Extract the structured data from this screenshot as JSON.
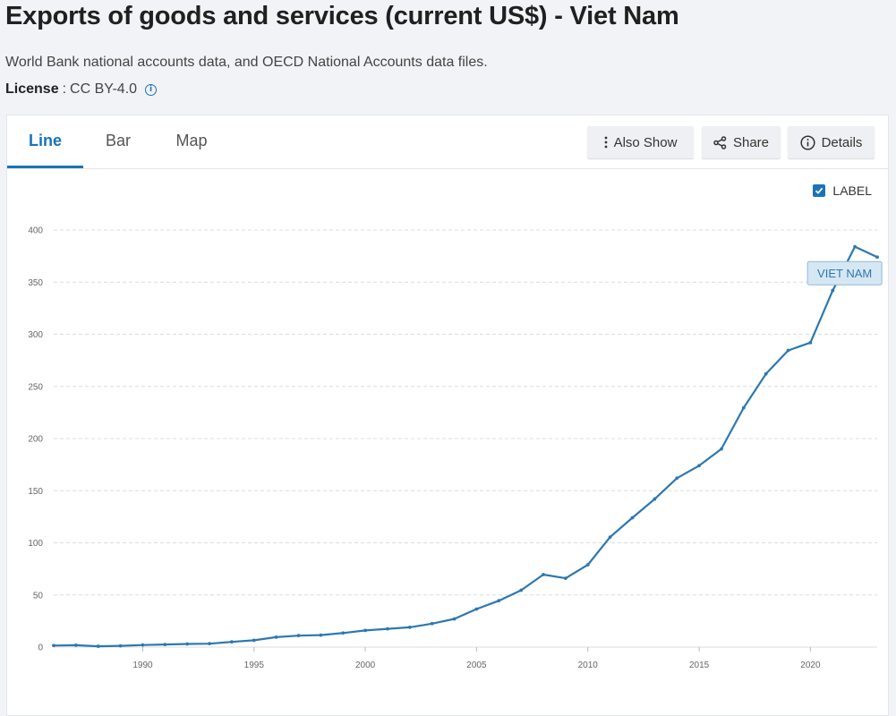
{
  "page": {
    "title": "Exports of goods and services (current US$) - Viet Nam",
    "source": "World Bank national accounts data, and OECD National Accounts data files.",
    "license_label": "License",
    "license_sep": ":",
    "license_value": "CC BY-4.0",
    "info_glyph": "i"
  },
  "tabs": [
    {
      "label": "Line",
      "active": true
    },
    {
      "label": "Bar",
      "active": false
    },
    {
      "label": "Map",
      "active": false
    }
  ],
  "toolbar": {
    "also_show": "Also Show",
    "share": "Share",
    "details": "Details"
  },
  "label_toggle": {
    "label": "LABEL",
    "checked": true
  },
  "colors": {
    "accent": "#1a73b8",
    "series": "#2e78b0",
    "grid": "#dcdcdc",
    "label_bg": "#d6e7f4"
  },
  "chart_data": {
    "type": "line",
    "title": "Exports of goods and services (current US$) - Viet Nam",
    "xlabel": "",
    "ylabel": "",
    "ylim": [
      0,
      400
    ],
    "xlim": [
      1986,
      2023
    ],
    "yticks": [
      0,
      50,
      100,
      150,
      200,
      250,
      300,
      350,
      400
    ],
    "xticks": [
      1990,
      1995,
      2000,
      2005,
      2010,
      2015,
      2020
    ],
    "grid": true,
    "series": [
      {
        "name": "VIET NAM",
        "x": [
          1986,
          1987,
          1988,
          1989,
          1990,
          1991,
          1992,
          1993,
          1994,
          1995,
          1996,
          1997,
          1998,
          1999,
          2000,
          2001,
          2002,
          2003,
          2004,
          2005,
          2006,
          2007,
          2008,
          2009,
          2010,
          2011,
          2012,
          2013,
          2014,
          2015,
          2016,
          2017,
          2018,
          2019,
          2020,
          2021,
          2022,
          2023
        ],
        "values": [
          1.5,
          1.8,
          0.8,
          1.2,
          2.0,
          2.5,
          3.0,
          3.3,
          5.0,
          6.5,
          9.5,
          11.0,
          11.5,
          13.5,
          16.0,
          17.5,
          19.0,
          22.5,
          27.0,
          36.5,
          44.5,
          54.5,
          69.5,
          66.0,
          79.0,
          105.5,
          124.0,
          142.0,
          162.0,
          174.0,
          190.0,
          229.5,
          262.0,
          284.5,
          292.0,
          342.0,
          384.0,
          374.0
        ]
      }
    ]
  }
}
